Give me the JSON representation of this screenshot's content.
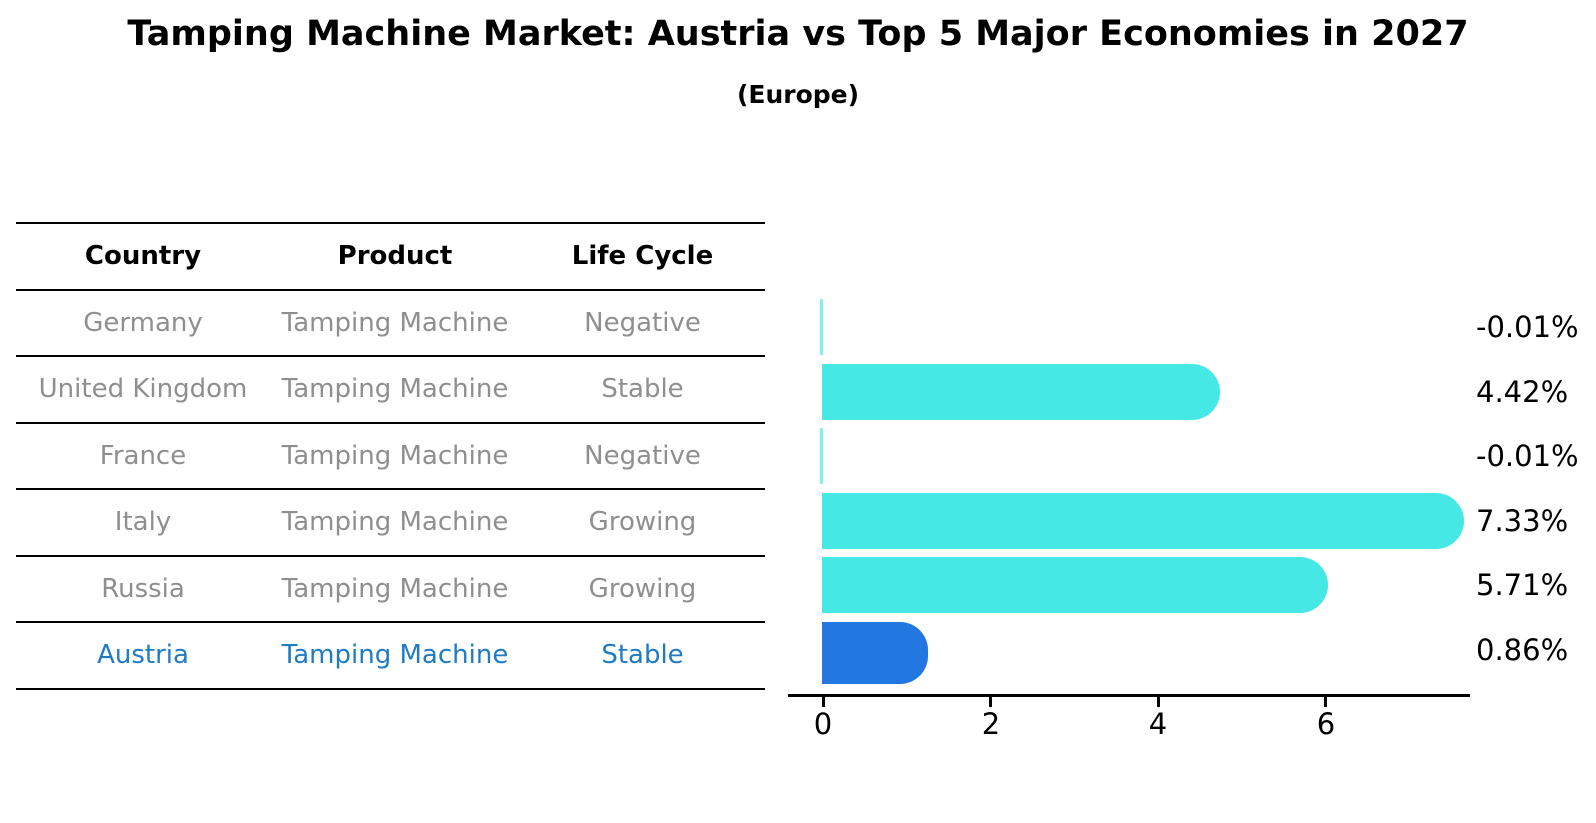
{
  "title": "Tamping Machine Market: Austria vs Top 5 Major Economies in 2027",
  "subtitle": "(Europe)",
  "table": {
    "headers": [
      "Country",
      "Product",
      "Life Cycle"
    ],
    "rows": [
      {
        "country": "Germany",
        "product": "Tamping Machine",
        "life_cycle": "Negative",
        "highlight": false
      },
      {
        "country": "United Kingdom",
        "product": "Tamping Machine",
        "life_cycle": "Stable",
        "highlight": false
      },
      {
        "country": "France",
        "product": "Tamping Machine",
        "life_cycle": "Negative",
        "highlight": false
      },
      {
        "country": "Italy",
        "product": "Tamping Machine",
        "life_cycle": "Growing",
        "highlight": false
      },
      {
        "country": "Russia",
        "product": "Tamping Machine",
        "life_cycle": "Growing",
        "highlight": false
      },
      {
        "country": "Austria",
        "product": "Tamping Machine",
        "life_cycle": "Stable",
        "highlight": true
      }
    ]
  },
  "chart_data": {
    "type": "bar",
    "orientation": "horizontal",
    "title": "Tamping Machine Market: Austria vs Top 5 Major Economies in 2027",
    "subtitle": "(Europe)",
    "categories": [
      "Germany",
      "United Kingdom",
      "France",
      "Italy",
      "Russia",
      "Austria"
    ],
    "values": [
      -0.01,
      4.42,
      -0.01,
      7.33,
      5.71,
      0.86
    ],
    "value_labels": [
      "-0.01%",
      "4.42%",
      "-0.01%",
      "7.33%",
      "5.71%",
      "0.86%"
    ],
    "x_ticks": [
      0,
      2,
      4,
      6
    ],
    "xlim": [
      -0.4,
      7.7
    ],
    "unit": "%",
    "grid": false,
    "legend": false,
    "bar_color": "#45e8e4",
    "highlight_bar_color": "#2277e0",
    "highlight_index": 5,
    "highlight_style": "dotted-border"
  },
  "colors": {
    "bar": "#45e8e4",
    "highlight_bar": "#2277e0",
    "highlight_text": "#1f7bc4",
    "table_text": "#8f8f8f",
    "header_text": "#000000",
    "axis": "#000000",
    "background": "#ffffff"
  }
}
